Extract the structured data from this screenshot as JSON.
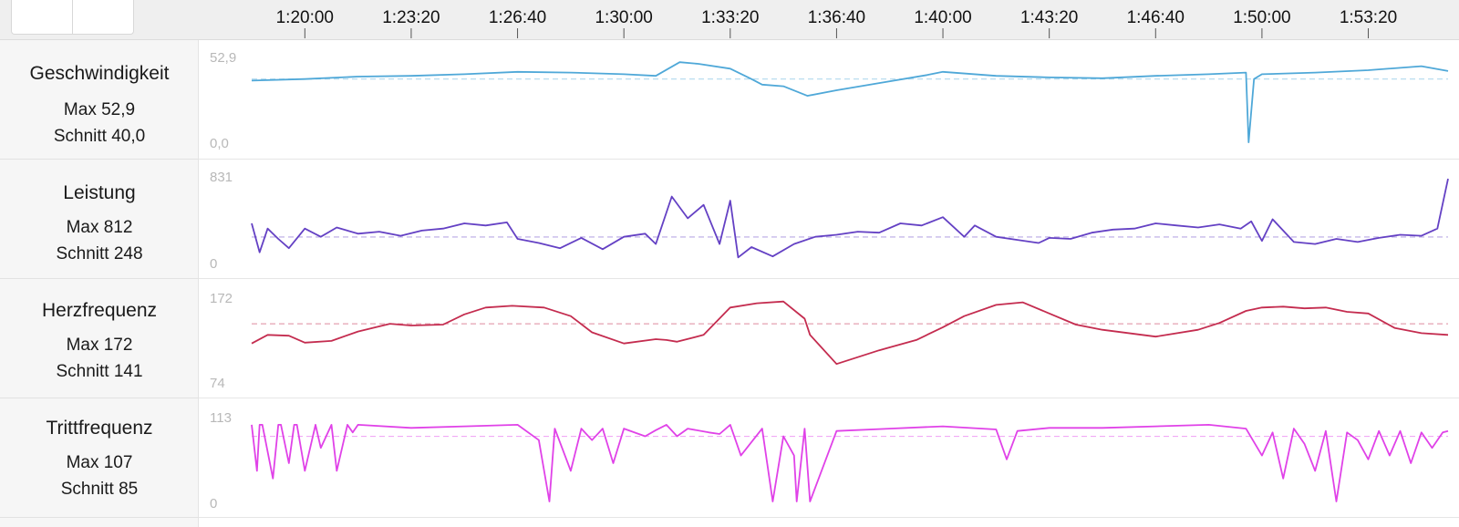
{
  "time_axis": {
    "labels": [
      "1:20:00",
      "1:23:20",
      "1:26:40",
      "1:30:00",
      "1:33:20",
      "1:36:40",
      "1:40:00",
      "1:43:20",
      "1:46:40",
      "1:50:00",
      "1:53:20"
    ]
  },
  "panels": [
    {
      "title": "Geschwindigkeit",
      "max_text": "Max 52,9",
      "avg_text": "Schnitt 40,0"
    },
    {
      "title": "Leistung",
      "max_text": "Max 812",
      "avg_text": "Schnitt 248"
    },
    {
      "title": "Herzfrequenz",
      "max_text": "Max 172",
      "avg_text": "Schnitt 141"
    },
    {
      "title": "Trittfrequenz",
      "max_text": "Max 107",
      "avg_text": "Schnitt 85"
    }
  ],
  "chart_data": [
    {
      "type": "line",
      "series": [
        {
          "name": "Geschwindigkeit",
          "color": "#4fa8d8"
        }
      ],
      "ylim": [
        0,
        52.9
      ],
      "y_tick_labels": [
        "52,9",
        "0,0"
      ],
      "average": 40.0,
      "x": [
        "1:18:20",
        "1:20:00",
        "1:21:40",
        "1:23:20",
        "1:25:00",
        "1:26:40",
        "1:28:20",
        "1:30:00",
        "1:31:00",
        "1:31:45",
        "1:32:20",
        "1:33:20",
        "1:34:00",
        "1:34:20",
        "1:35:00",
        "1:35:45",
        "1:36:40",
        "1:38:00",
        "1:39:30",
        "1:40:00",
        "1:41:40",
        "1:43:20",
        "1:45:00",
        "1:46:40",
        "1:48:20",
        "1:49:30",
        "1:49:35",
        "1:49:45",
        "1:50:00",
        "1:51:40",
        "1:53:20",
        "1:55:00",
        "1:55:50"
      ],
      "values": [
        39.0,
        40.0,
        41.5,
        42.0,
        43.0,
        44.5,
        44.0,
        43.0,
        42.0,
        50.5,
        49.5,
        46.5,
        40.0,
        36.5,
        35.5,
        29.5,
        33.0,
        37.5,
        42.5,
        44.5,
        42.0,
        41.0,
        40.5,
        42.0,
        43.0,
        44.0,
        0.5,
        40.0,
        43.0,
        44.0,
        45.5,
        48.0,
        45.0
      ]
    },
    {
      "type": "line",
      "series": [
        {
          "name": "Leistung",
          "color": "#6441c4"
        }
      ],
      "ylim": [
        0,
        831
      ],
      "y_tick_labels": [
        "831",
        "0"
      ],
      "average": 248,
      "x": [
        "1:18:20",
        "1:18:35",
        "1:18:50",
        "1:19:10",
        "1:19:30",
        "1:20:00",
        "1:20:30",
        "1:21:00",
        "1:21:40",
        "1:22:20",
        "1:23:00",
        "1:23:40",
        "1:24:20",
        "1:25:00",
        "1:25:40",
        "1:26:20",
        "1:26:40",
        "1:27:20",
        "1:28:00",
        "1:28:40",
        "1:29:20",
        "1:30:00",
        "1:30:40",
        "1:31:00",
        "1:31:30",
        "1:32:00",
        "1:32:30",
        "1:33:00",
        "1:33:20",
        "1:33:35",
        "1:34:00",
        "1:34:40",
        "1:35:20",
        "1:36:00",
        "1:36:40",
        "1:37:20",
        "1:38:00",
        "1:38:40",
        "1:39:20",
        "1:40:00",
        "1:40:40",
        "1:41:00",
        "1:41:40",
        "1:42:20",
        "1:43:00",
        "1:43:20",
        "1:44:00",
        "1:44:40",
        "1:45:20",
        "1:46:00",
        "1:46:40",
        "1:47:20",
        "1:48:00",
        "1:48:40",
        "1:49:20",
        "1:49:40",
        "1:50:00",
        "1:50:20",
        "1:51:00",
        "1:51:40",
        "1:52:20",
        "1:53:00",
        "1:53:40",
        "1:54:20",
        "1:55:00",
        "1:55:30",
        "1:55:50"
      ],
      "values": [
        380,
        100,
        330,
        230,
        140,
        330,
        250,
        340,
        280,
        300,
        260,
        310,
        330,
        380,
        360,
        390,
        230,
        190,
        140,
        240,
        130,
        250,
        280,
        180,
        640,
        430,
        560,
        180,
        600,
        50,
        150,
        60,
        180,
        250,
        270,
        300,
        290,
        380,
        360,
        440,
        250,
        360,
        250,
        220,
        190,
        240,
        230,
        290,
        320,
        330,
        380,
        360,
        340,
        370,
        330,
        400,
        210,
        420,
        200,
        180,
        230,
        200,
        240,
        270,
        260,
        330,
        812
      ]
    },
    {
      "type": "line",
      "series": [
        {
          "name": "Herzfrequenz",
          "color": "#c42c4f"
        }
      ],
      "ylim": [
        74,
        172
      ],
      "y_tick_labels": [
        "172",
        "74"
      ],
      "average": 141,
      "x": [
        "1:18:20",
        "1:18:50",
        "1:19:30",
        "1:20:00",
        "1:20:50",
        "1:21:40",
        "1:22:40",
        "1:23:20",
        "1:24:20",
        "1:25:00",
        "1:25:40",
        "1:26:30",
        "1:27:30",
        "1:28:20",
        "1:29:00",
        "1:30:00",
        "1:31:00",
        "1:31:20",
        "1:31:40",
        "1:32:30",
        "1:33:20",
        "1:34:10",
        "1:35:00",
        "1:35:40",
        "1:35:50",
        "1:36:40",
        "1:38:00",
        "1:39:10",
        "1:40:00",
        "1:40:40",
        "1:41:40",
        "1:42:30",
        "1:43:20",
        "1:44:10",
        "1:45:00",
        "1:46:40",
        "1:48:00",
        "1:48:40",
        "1:49:30",
        "1:50:00",
        "1:50:40",
        "1:51:20",
        "1:52:00",
        "1:52:40",
        "1:53:20",
        "1:54:10",
        "1:55:00",
        "1:55:50"
      ],
      "values": [
        118,
        128,
        127,
        119,
        121,
        132,
        141,
        139,
        140,
        152,
        160,
        162,
        160,
        150,
        131,
        118,
        123,
        122,
        120,
        128,
        160,
        165,
        167,
        147,
        128,
        94,
        110,
        122,
        137,
        150,
        163,
        166,
        153,
        140,
        134,
        126,
        134,
        142,
        156,
        160,
        161,
        159,
        160,
        155,
        153,
        136,
        130,
        128
      ]
    },
    {
      "type": "line",
      "series": [
        {
          "name": "Trittfrequenz",
          "color": "#e042e8"
        }
      ],
      "ylim": [
        0,
        113
      ],
      "y_tick_labels": [
        "113",
        "0"
      ],
      "average": 85,
      "x": [
        "1:18:20",
        "1:18:30",
        "1:18:35",
        "1:18:40",
        "1:19:00",
        "1:19:10",
        "1:19:15",
        "1:19:30",
        "1:19:40",
        "1:19:45",
        "1:20:00",
        "1:20:20",
        "1:20:30",
        "1:20:50",
        "1:21:00",
        "1:21:20",
        "1:21:30",
        "1:21:40",
        "1:23:20",
        "1:25:00",
        "1:26:40",
        "1:27:20",
        "1:27:40",
        "1:27:50",
        "1:28:20",
        "1:28:40",
        "1:29:00",
        "1:29:20",
        "1:29:40",
        "1:30:00",
        "1:30:40",
        "1:31:00",
        "1:31:20",
        "1:31:40",
        "1:32:00",
        "1:32:40",
        "1:33:00",
        "1:33:20",
        "1:33:40",
        "1:34:20",
        "1:34:40",
        "1:35:00",
        "1:35:20",
        "1:35:25",
        "1:35:40",
        "1:35:50",
        "1:36:40",
        "1:38:20",
        "1:40:00",
        "1:41:40",
        "1:42:00",
        "1:42:20",
        "1:43:20",
        "1:45:00",
        "1:46:40",
        "1:48:20",
        "1:49:30",
        "1:50:00",
        "1:50:20",
        "1:50:40",
        "1:51:00",
        "1:51:20",
        "1:51:40",
        "1:52:00",
        "1:52:20",
        "1:52:40",
        "1:53:00",
        "1:53:20",
        "1:53:40",
        "1:54:00",
        "1:54:20",
        "1:54:40",
        "1:55:00",
        "1:55:20",
        "1:55:40",
        "1:55:50"
      ],
      "values": [
        100,
        40,
        100,
        100,
        30,
        100,
        100,
        50,
        100,
        100,
        40,
        100,
        70,
        100,
        40,
        100,
        90,
        100,
        96,
        98,
        100,
        80,
        0,
        95,
        40,
        95,
        80,
        95,
        50,
        95,
        85,
        93,
        100,
        85,
        95,
        90,
        88,
        100,
        60,
        95,
        0,
        85,
        60,
        0,
        95,
        0,
        92,
        95,
        98,
        94,
        55,
        92,
        96,
        96,
        98,
        100,
        95,
        60,
        90,
        30,
        95,
        75,
        40,
        92,
        0,
        90,
        80,
        55,
        92,
        60,
        92,
        50,
        90,
        70,
        90,
        92
      ]
    }
  ]
}
